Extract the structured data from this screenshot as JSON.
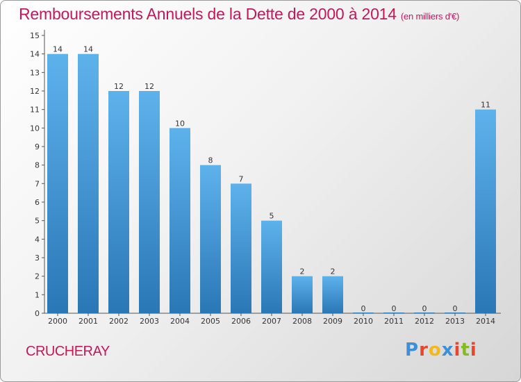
{
  "header": {
    "title": "Remboursements Annuels de la Dette de 2000 à 2014",
    "unit": "(en milliers d'€)"
  },
  "commune": "CRUCHERAY",
  "logo": {
    "text": "Proxiti",
    "colors": [
      "#3f8fd8",
      "#e8462e",
      "#f2b81c",
      "#3f8fd8",
      "#e8462e",
      "#88b827",
      "#e8462e"
    ]
  },
  "colors": {
    "accent": "#c6175b",
    "bar_top": "#5eb2ec",
    "bar_bottom": "#2a77b6"
  },
  "chart_data": {
    "type": "bar",
    "title": "Remboursements Annuels de la Dette de 2000 à 2014",
    "subtitle": "(en milliers d'€)",
    "categories": [
      "2000",
      "2001",
      "2002",
      "2003",
      "2004",
      "2005",
      "2006",
      "2007",
      "2008",
      "2009",
      "2010",
      "2011",
      "2012",
      "2013",
      "2014"
    ],
    "values": [
      14,
      14,
      12,
      12,
      10,
      8,
      7,
      5,
      2,
      2,
      0,
      0,
      0,
      0,
      11
    ],
    "yticks": [
      0,
      1,
      2,
      3,
      4,
      5,
      6,
      7,
      8,
      9,
      10,
      11,
      12,
      13,
      14,
      15
    ],
    "ylim": [
      0,
      15
    ],
    "grid": false,
    "legend": "none"
  }
}
